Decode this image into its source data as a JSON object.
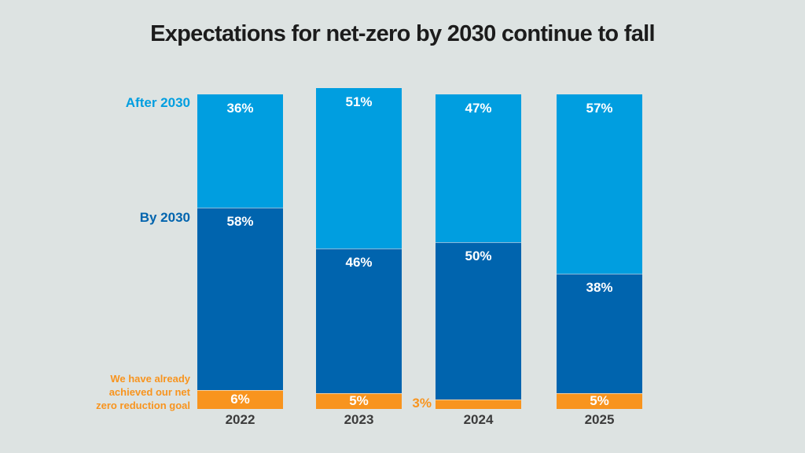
{
  "title": "Expectations for net-zero by 2030 continue to fall",
  "colors": {
    "background": "#dde3e2",
    "light_blue": "#009ee0",
    "dark_blue": "#0064ae",
    "orange": "#f8941e",
    "title_text": "#1c1c1c",
    "year_text": "#3b3b3b",
    "value_label_text": "#ffffff"
  },
  "legend": {
    "after_2030": "After 2030",
    "by_2030": "By 2030",
    "achieved_lines": [
      "We have already",
      "achieved our net",
      "zero reduction goal"
    ]
  },
  "chart_data": {
    "type": "bar",
    "stacked": true,
    "orientation": "vertical",
    "unit": "%",
    "value_label_format": "{v}%",
    "categories": [
      "2022",
      "2023",
      "2024",
      "2025"
    ],
    "series": [
      {
        "name": "After 2030",
        "color_key": "light_blue",
        "values": [
          36,
          51,
          47,
          57
        ]
      },
      {
        "name": "By 2030",
        "color_key": "dark_blue",
        "values": [
          58,
          46,
          50,
          38
        ]
      },
      {
        "name": "We have already achieved our net zero reduction goal",
        "color_key": "orange",
        "values": [
          6,
          5,
          3,
          5
        ]
      }
    ],
    "notes": {
      "small_segment_outside_label": "2024 orange segment (3%) is labeled outside the bar, to its left, in orange text",
      "axis": "no visible axes or gridlines; bars sit on an invisible baseline",
      "legend_position": "series labels sit to the left of the first bar, aligned with their segments"
    }
  }
}
